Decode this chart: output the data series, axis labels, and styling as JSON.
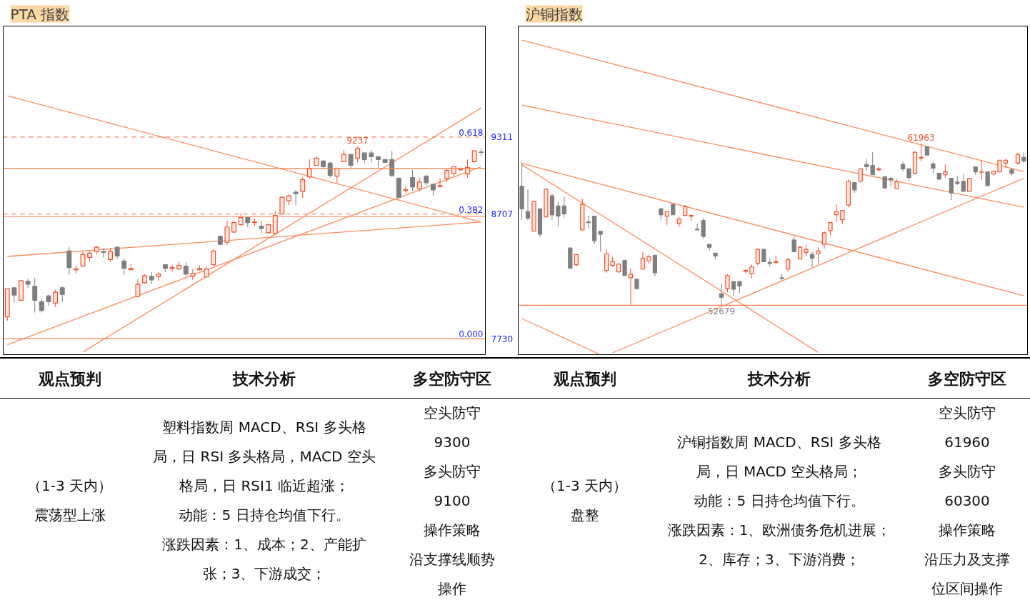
{
  "chart_data": [
    {
      "type": "candlestick",
      "title": "PTA 指数",
      "tick_labels": "y",
      "ylim": [
        7605,
        10181
      ],
      "yticks": [
        9311,
        8707,
        7730
      ],
      "categories": [
        null,
        null,
        null,
        null,
        null,
        null,
        null,
        null,
        null,
        null,
        null,
        null,
        null,
        null,
        null,
        null,
        null,
        null,
        null,
        null,
        null,
        null,
        null,
        null,
        null,
        null,
        null,
        null,
        null,
        null,
        null,
        null,
        null,
        null,
        null,
        null,
        null,
        null,
        null,
        null,
        null,
        null,
        null,
        null,
        null,
        null,
        null,
        null,
        null,
        null,
        null,
        null,
        null,
        null,
        null,
        null,
        null,
        null,
        null,
        null,
        null,
        null,
        null,
        null,
        null,
        null,
        null,
        null,
        null,
        null
      ],
      "ohlc": [
        [
          7901,
          8123,
          7872,
          8123
        ],
        [
          8129,
          8134,
          8014,
          8072
        ],
        [
          8031,
          8191,
          8026,
          8185
        ],
        [
          8180,
          8202,
          8129,
          8157
        ],
        [
          8140,
          8208,
          7935,
          8031
        ],
        [
          8020,
          8043,
          7935,
          7952
        ],
        [
          8066,
          8072,
          7986,
          8020
        ],
        [
          8009,
          8112,
          7980,
          8094
        ],
        [
          8129,
          8140,
          8020,
          8077
        ],
        [
          8418,
          8447,
          8231,
          8288
        ],
        [
          8271,
          8305,
          8242,
          8276
        ],
        [
          8299,
          8413,
          8293,
          8390
        ],
        [
          8367,
          8418,
          8333,
          8401
        ],
        [
          8413,
          8458,
          8390,
          8447
        ],
        [
          8413,
          8441,
          8367,
          8407
        ],
        [
          8350,
          8441,
          8333,
          8413
        ],
        [
          8447,
          8452,
          8356,
          8379
        ],
        [
          8339,
          8361,
          8231,
          8282
        ],
        [
          8271,
          8316,
          8265,
          8282
        ],
        [
          8060,
          8197,
          8054,
          8157
        ],
        [
          8168,
          8237,
          8163,
          8225
        ],
        [
          8219,
          8253,
          8157,
          8191
        ],
        [
          8219,
          8253,
          8185,
          8237
        ],
        [
          8310,
          8310,
          8253,
          8282
        ],
        [
          8282,
          8310,
          8253,
          8288
        ],
        [
          8276,
          8333,
          8271,
          8305
        ],
        [
          8299,
          8327,
          8219,
          8237
        ],
        [
          8219,
          8276,
          8191,
          8242
        ],
        [
          8271,
          8305,
          8265,
          8282
        ],
        [
          8214,
          8299,
          8208,
          8276
        ],
        [
          8310,
          8430,
          8299,
          8418
        ],
        [
          8532,
          8538,
          8464,
          8469
        ],
        [
          8486,
          8657,
          8464,
          8606
        ],
        [
          8566,
          8646,
          8560,
          8640
        ],
        [
          8623,
          8714,
          8617,
          8680
        ],
        [
          8680,
          8680,
          8606,
          8640
        ],
        [
          8640,
          8674,
          8612,
          8646
        ],
        [
          8612,
          8651,
          8560,
          8594
        ],
        [
          8560,
          8634,
          8555,
          8623
        ],
        [
          8555,
          8731,
          8555,
          8697
        ],
        [
          8708,
          8850,
          8708,
          8839
        ],
        [
          8811,
          8862,
          8776,
          8850
        ],
        [
          8879,
          8896,
          8776,
          8867
        ],
        [
          8885,
          8998,
          8833,
          8976
        ],
        [
          8998,
          9135,
          8987,
          9061
        ],
        [
          9089,
          9157,
          9089,
          9146
        ],
        [
          9123,
          9129,
          9066,
          9078
        ],
        [
          9106,
          9118,
          8993,
          9010
        ],
        [
          9004,
          9072,
          8953,
          9066
        ],
        [
          9118,
          9209,
          9118,
          9175
        ],
        [
          9175,
          9175,
          9061,
          9089
        ],
        [
          9146,
          9237,
          9112,
          9220
        ],
        [
          9186,
          9192,
          9106,
          9135
        ],
        [
          9186,
          9209,
          9112,
          9157
        ],
        [
          9157,
          9157,
          9066,
          9135
        ],
        [
          9135,
          9140,
          9112,
          9112
        ],
        [
          9135,
          9203,
          8998,
          9010
        ],
        [
          8987,
          8998,
          8828,
          8839
        ],
        [
          8894,
          8924,
          8873,
          8898
        ],
        [
          8993,
          9055,
          8890,
          8919
        ],
        [
          8907,
          8993,
          8885,
          8958
        ],
        [
          9004,
          9015,
          8930,
          8953
        ],
        [
          8941,
          8941,
          8850,
          8896
        ],
        [
          8924,
          8987,
          8913,
          8930
        ],
        [
          8987,
          9066,
          8958,
          9049
        ],
        [
          9027,
          9078,
          9004,
          9078
        ],
        [
          9055,
          9072,
          9044,
          9066
        ],
        [
          9021,
          9135,
          8993,
          9072
        ],
        [
          9118,
          9203,
          9112,
          9203
        ],
        [
          9194,
          9220,
          9163,
          9190
        ]
      ],
      "series": [
        {
          "type": "line",
          "color": "#ff8c5a",
          "values": [
            9634,
            null,
            null,
            null,
            null,
            null,
            null,
            null,
            null,
            null,
            null,
            null,
            null,
            null,
            null,
            null,
            null,
            null,
            null,
            null,
            null,
            null,
            null,
            null,
            null,
            null,
            null,
            null,
            null,
            null,
            null,
            null,
            null,
            null,
            null,
            null,
            null,
            null,
            null,
            null,
            null,
            null,
            null,
            null,
            null,
            null,
            null,
            null,
            null,
            null,
            null,
            null,
            null,
            null,
            null,
            null,
            null,
            null,
            null,
            null,
            null,
            null,
            null,
            null,
            null,
            null,
            null,
            null,
            null,
            8644
          ]
        },
        {
          "type": "line",
          "color": "#ff8c5a",
          "values": [
            8375,
            null,
            null,
            null,
            null,
            null,
            null,
            null,
            null,
            null,
            null,
            null,
            null,
            null,
            null,
            null,
            null,
            null,
            null,
            null,
            null,
            null,
            null,
            null,
            null,
            null,
            null,
            null,
            null,
            null,
            null,
            null,
            null,
            null,
            null,
            null,
            null,
            null,
            null,
            null,
            null,
            null,
            null,
            null,
            null,
            null,
            null,
            null,
            null,
            null,
            null,
            null,
            null,
            null,
            null,
            null,
            null,
            null,
            null,
            null,
            null,
            null,
            null,
            null,
            null,
            null,
            null,
            null,
            null,
            8645
          ]
        },
        {
          "type": "line",
          "color": "#ff8c5a",
          "values": [
            7683,
            null,
            null,
            null,
            null,
            null,
            null,
            null,
            null,
            null,
            null,
            null,
            null,
            null,
            null,
            null,
            null,
            null,
            null,
            null,
            null,
            null,
            null,
            null,
            null,
            null,
            null,
            null,
            null,
            null,
            null,
            null,
            null,
            null,
            null,
            null,
            null,
            null,
            null,
            null,
            null,
            null,
            null,
            null,
            null,
            null,
            null,
            null,
            null,
            null,
            null,
            null,
            null,
            null,
            null,
            null,
            null,
            null,
            null,
            null,
            null,
            null,
            null,
            null,
            null,
            null,
            null,
            null,
            null,
            9078
          ]
        },
        {
          "type": "line",
          "color": "#ff8c5a",
          "values": [
            null,
            null,
            null,
            null,
            null,
            null,
            null,
            null,
            null,
            null,
            null,
            7625,
            null,
            null,
            null,
            null,
            null,
            null,
            null,
            null,
            null,
            null,
            null,
            null,
            null,
            null,
            null,
            null,
            null,
            null,
            null,
            null,
            null,
            null,
            null,
            null,
            null,
            null,
            null,
            null,
            null,
            null,
            null,
            null,
            null,
            null,
            null,
            null,
            null,
            null,
            null,
            null,
            null,
            null,
            null,
            null,
            null,
            null,
            null,
            null,
            null,
            null,
            null,
            null,
            null,
            null,
            null,
            null,
            null,
            9539
          ]
        }
      ],
      "ref_lines": [
        {
          "axis": "y",
          "value": 9311,
          "line_style": "dashed",
          "color": "#ff7f50"
        },
        {
          "axis": "y",
          "value": 8707,
          "line_style": "dashed",
          "color": "#ff7f50"
        },
        {
          "axis": "y",
          "value": 7730,
          "color": "#ff7f50"
        },
        {
          "axis": "y",
          "value": 9066,
          "color": "#ff7f50"
        },
        {
          "axis": "y",
          "value": 8686,
          "color": "#ffa07a"
        }
      ],
      "annotations": [
        {
          "text": "9237",
          "y": 9237
        },
        {
          "text": "0.618",
          "y": 9311
        },
        {
          "text": "0.382",
          "y": 8707
        },
        {
          "text": "0.000",
          "y": 7730
        }
      ]
    },
    {
      "type": "candlestick",
      "title": "沪铜指数",
      "tick_labels": false,
      "ylim": [
        49849,
        68707
      ],
      "categories": [
        null,
        null,
        null,
        null,
        null,
        null,
        null,
        null,
        null,
        null,
        null,
        null,
        null,
        null,
        null,
        null,
        null,
        null,
        null,
        null,
        null,
        null,
        null,
        null,
        null,
        null,
        null,
        null,
        null,
        null,
        null,
        null,
        null,
        null,
        null,
        null,
        null,
        null,
        null,
        null,
        null,
        null,
        null,
        null,
        null,
        null,
        null,
        null,
        null,
        null,
        null,
        null,
        null,
        null,
        null,
        null,
        null,
        null,
        null,
        null,
        null,
        null,
        null,
        null,
        null,
        null,
        null,
        null,
        null,
        null,
        null,
        null,
        null,
        null,
        null,
        null,
        null,
        null,
        null,
        null,
        null,
        null,
        null,
        null
      ],
      "ohlc": [
        [
          59510,
          60880,
          57590,
          58220
        ],
        [
          58050,
          59340,
          57550,
          57680
        ],
        [
          56930,
          58680,
          56930,
          58630
        ],
        [
          58220,
          58220,
          56590,
          56760
        ],
        [
          57760,
          59430,
          57760,
          59340
        ],
        [
          58970,
          59050,
          57590,
          57880
        ],
        [
          58380,
          58630,
          57220,
          57800
        ],
        [
          58380,
          58920,
          57720,
          57930
        ],
        [
          55970,
          55970,
          54800,
          54800
        ],
        [
          55010,
          55590,
          54930,
          55590
        ],
        [
          57010,
          58800,
          57010,
          58470
        ],
        [
          57470,
          57840,
          57090,
          57430
        ],
        [
          57800,
          57800,
          56180,
          56390
        ],
        [
          56930,
          56930,
          55760,
          56760
        ],
        [
          54680,
          55890,
          54550,
          55640
        ],
        [
          54970,
          55470,
          54890,
          55180
        ],
        [
          54600,
          55050,
          54550,
          55050
        ],
        [
          55260,
          55260,
          54390,
          54390
        ],
        [
          54260,
          54800,
          52700,
          54470
        ],
        [
          54180,
          54180,
          53640,
          53640
        ],
        [
          54760,
          55760,
          54760,
          55390
        ],
        [
          55220,
          55590,
          55050,
          55470
        ],
        [
          55550,
          55550,
          54350,
          54550
        ],
        [
          58220,
          58260,
          57550,
          57880
        ],
        [
          57800,
          58050,
          57300,
          58050
        ],
        [
          58470,
          58510,
          57880,
          57880
        ],
        [
          57380,
          57760,
          57180,
          57630
        ],
        [
          57840,
          58430,
          57840,
          58340
        ],
        [
          57800,
          57880,
          57550,
          57840
        ],
        [
          57050,
          57380,
          57010,
          57010
        ],
        [
          57550,
          57680,
          56510,
          56630
        ],
        [
          56180,
          56180,
          55800,
          56010
        ],
        [
          55680,
          55680,
          55340,
          55510
        ],
        [
          53350,
          53930,
          52679,
          53140
        ],
        [
          53640,
          54470,
          53430,
          54390
        ],
        [
          54050,
          54050,
          53180,
          53600
        ],
        [
          54050,
          54050,
          53390,
          53800
        ],
        [
          54640,
          54760,
          54510,
          54680
        ],
        [
          54510,
          55010,
          54220,
          54890
        ],
        [
          55090,
          55930,
          54970,
          55890
        ],
        [
          55890,
          55930,
          55180,
          55180
        ],
        [
          55140,
          55340,
          54890,
          55090
        ],
        [
          55140,
          55550,
          55050,
          55180
        ],
        [
          54260,
          54510,
          54100,
          54220
        ],
        [
          54760,
          55390,
          54600,
          55300
        ],
        [
          56430,
          56630,
          55720,
          55760
        ],
        [
          55340,
          56090,
          55340,
          56010
        ],
        [
          55720,
          56180,
          55510,
          55890
        ],
        [
          55590,
          55760,
          54850,
          55390
        ],
        [
          55640,
          56010,
          55050,
          55800
        ],
        [
          56180,
          56930,
          55930,
          56840
        ],
        [
          56970,
          57430,
          56680,
          57430
        ],
        [
          57880,
          58470,
          57470,
          58050
        ],
        [
          57590,
          58130,
          57340,
          58130
        ],
        [
          58430,
          59920,
          58300,
          59800
        ],
        [
          59720,
          59720,
          59130,
          59300
        ],
        [
          59800,
          60510,
          59720,
          60510
        ],
        [
          60760,
          61090,
          60420,
          60630
        ],
        [
          60710,
          61460,
          60170,
          60170
        ],
        [
          60460,
          60630,
          60340,
          60510
        ],
        [
          60050,
          60090,
          59380,
          59420
        ],
        [
          59970,
          60050,
          59510,
          59880
        ],
        [
          59380,
          59920,
          59380,
          59760
        ],
        [
          60760,
          60920,
          60380,
          60510
        ],
        [
          60510,
          60510,
          59840,
          60010
        ],
        [
          60260,
          61550,
          60210,
          61460
        ],
        [
          61130,
          61963,
          60960,
          61170
        ],
        [
          61760,
          61840,
          61300,
          61300
        ],
        [
          60800,
          60920,
          60260,
          60550
        ],
        [
          60260,
          60260,
          59920,
          59920
        ],
        [
          60170,
          60760,
          60010,
          60340
        ],
        [
          59970,
          59970,
          58720,
          59130
        ],
        [
          59760,
          60090,
          59590,
          59670
        ],
        [
          59800,
          60210,
          59220,
          59220
        ],
        [
          59220,
          59970,
          59220,
          59970
        ],
        [
          60630,
          60630,
          60170,
          60340
        ],
        [
          60320,
          61010,
          59880,
          60340
        ],
        [
          60340,
          60340,
          59550,
          59550
        ],
        [
          60210,
          60420,
          60130,
          60380
        ],
        [
          60340,
          61010,
          60340,
          61010
        ],
        [
          60840,
          61090,
          60550,
          61010
        ],
        [
          60460,
          60550,
          60130,
          60260
        ],
        [
          60840,
          61420,
          60760,
          61340
        ],
        [
          61170,
          61460,
          60840,
          60960
        ]
      ],
      "series": [
        {
          "type": "line",
          "color": "#ff8c5a",
          "values": [
            67903,
            null,
            null,
            null,
            null,
            null,
            null,
            null,
            null,
            null,
            null,
            null,
            null,
            null,
            null,
            null,
            null,
            null,
            null,
            null,
            null,
            null,
            null,
            null,
            null,
            null,
            null,
            null,
            null,
            null,
            null,
            null,
            null,
            null,
            null,
            null,
            null,
            null,
            null,
            null,
            null,
            null,
            null,
            null,
            null,
            null,
            null,
            null,
            null,
            null,
            null,
            null,
            null,
            null,
            null,
            null,
            null,
            null,
            null,
            null,
            null,
            null,
            null,
            null,
            null,
            null,
            null,
            null,
            null,
            null,
            null,
            null,
            null,
            null,
            null,
            null,
            null,
            null,
            null,
            null,
            null,
            null,
            null,
            60346
          ]
        },
        {
          "type": "line",
          "color": "#ff8c5a",
          "values": [
            64169,
            null,
            null,
            null,
            null,
            null,
            null,
            null,
            null,
            null,
            null,
            null,
            null,
            null,
            null,
            null,
            null,
            null,
            null,
            null,
            null,
            null,
            null,
            null,
            null,
            null,
            null,
            null,
            null,
            null,
            null,
            null,
            null,
            null,
            null,
            null,
            null,
            null,
            null,
            null,
            null,
            null,
            null,
            null,
            null,
            null,
            null,
            null,
            null,
            null,
            null,
            null,
            null,
            null,
            null,
            null,
            null,
            null,
            null,
            null,
            null,
            null,
            null,
            null,
            null,
            null,
            null,
            null,
            null,
            null,
            null,
            null,
            null,
            null,
            null,
            null,
            null,
            null,
            null,
            null,
            null,
            null,
            null,
            58309
          ]
        },
        {
          "type": "line",
          "color": "#ff8c5a",
          "values": [
            60826,
            null,
            null,
            null,
            null,
            null,
            null,
            null,
            null,
            null,
            null,
            null,
            null,
            null,
            null,
            null,
            null,
            null,
            null,
            null,
            null,
            null,
            null,
            null,
            null,
            null,
            null,
            null,
            null,
            null,
            null,
            null,
            null,
            null,
            null,
            null,
            null,
            null,
            null,
            null,
            null,
            null,
            null,
            null,
            null,
            null,
            null,
            null,
            null,
            null,
            null,
            null,
            null,
            null,
            null,
            null,
            null,
            null,
            null,
            null,
            null,
            null,
            null,
            null,
            null,
            null,
            null,
            null,
            null,
            null,
            null,
            null,
            null,
            null,
            null,
            null,
            null,
            null,
            null,
            null,
            null,
            null,
            null,
            53228
          ]
        },
        {
          "type": "line",
          "color": "#ff8c5a",
          "values": [
            60749,
            null,
            null,
            null,
            null,
            null,
            null,
            null,
            null,
            null,
            null,
            null,
            null,
            null,
            null,
            null,
            null,
            null,
            null,
            null,
            null,
            null,
            null,
            null,
            null,
            null,
            null,
            null,
            null,
            null,
            null,
            null,
            null,
            null,
            null,
            null,
            null,
            null,
            null,
            null,
            null,
            null,
            null,
            null,
            null,
            null,
            null,
            null,
            null,
            49979,
            null,
            null,
            null,
            null,
            null,
            null,
            null,
            null,
            null,
            null,
            null,
            null,
            null,
            null,
            null,
            null,
            null,
            null,
            null,
            null,
            null,
            null,
            null,
            null,
            null,
            null,
            null,
            null,
            null,
            null,
            null,
            null,
            null,
            null
          ]
        },
        {
          "type": "line",
          "color": "#ff8c5a",
          "values": [
            null,
            null,
            null,
            null,
            null,
            null,
            null,
            null,
            null,
            null,
            null,
            null,
            null,
            null,
            null,
            49952,
            null,
            null,
            null,
            null,
            null,
            null,
            null,
            null,
            null,
            null,
            null,
            null,
            null,
            null,
            null,
            null,
            null,
            null,
            null,
            null,
            null,
            null,
            null,
            null,
            null,
            null,
            null,
            null,
            null,
            null,
            null,
            null,
            null,
            null,
            null,
            null,
            null,
            null,
            null,
            null,
            null,
            null,
            null,
            null,
            null,
            null,
            null,
            null,
            null,
            null,
            null,
            null,
            null,
            null,
            null,
            null,
            null,
            null,
            null,
            null,
            null,
            null,
            null,
            null,
            null,
            null,
            null,
            59975
          ]
        },
        {
          "type": "line",
          "color": "#ff8c5a",
          "values": [
            51918,
            null,
            null,
            null,
            null,
            null,
            null,
            null,
            null,
            null,
            null,
            null,
            null,
            49849,
            null,
            null,
            null,
            null,
            null,
            null,
            null,
            null,
            null,
            null,
            null,
            null,
            null,
            null,
            null,
            null,
            null,
            null,
            null,
            null,
            null,
            null,
            null,
            null,
            null,
            null,
            null,
            null,
            null,
            null,
            null,
            null,
            null,
            null,
            null,
            null,
            null,
            null,
            null,
            null,
            null,
            null,
            null,
            null,
            null,
            null,
            null,
            null,
            null,
            null,
            null,
            null,
            null,
            null,
            null,
            null,
            null,
            null,
            null,
            null,
            null,
            null,
            null,
            null,
            null,
            null,
            null,
            null,
            null,
            null
          ]
        }
      ],
      "ref_lines": [
        {
          "axis": "y",
          "value": 52679,
          "color": "#ff7f50"
        }
      ],
      "annotations": [
        {
          "text": "61963",
          "y": 61963
        },
        {
          "text": "52679",
          "y": 52679
        }
      ]
    },
    {
      "type": "other",
      "title": "观点预判",
      "annotations": [
        "（1-3 天内）",
        "震荡型上涨"
      ]
    },
    {
      "type": "other",
      "title": "技术分析",
      "annotations": [
        "塑料指数周 MACD、RSI 多头格局，日 RSI 多头格局，MACD 空头格局，日 RSI1 临近超涨；",
        "动能：5 日持仓均值下行。",
        "涨跌因素：1、成本；2、产能扩张；3、下游成交；"
      ]
    },
    {
      "type": "other",
      "title": "多空防守区",
      "annotations": [
        "空头防守",
        "9300",
        "多头防守",
        "9100",
        "操作策略",
        "沿支撑线顺势操作"
      ]
    },
    {
      "type": "other",
      "title": "观点预判",
      "annotations": [
        "（1-3 天内）",
        "盘整"
      ]
    },
    {
      "type": "other",
      "title": "技术分析",
      "annotations": [
        "沪铜指数周 MACD、RSI 多头格局，日 MACD 空头格局；",
        "动能：5 日持仓均值下行。",
        "涨跌因素：1、欧洲债务危机进展；2、库存；3、下游消费；"
      ]
    },
    {
      "type": "other",
      "title": "多空防守区",
      "annotations": [
        "空头防守",
        "61960",
        "多头防守",
        "60300",
        "操作策略",
        "沿压力及支撑位区间操作"
      ]
    }
  ]
}
